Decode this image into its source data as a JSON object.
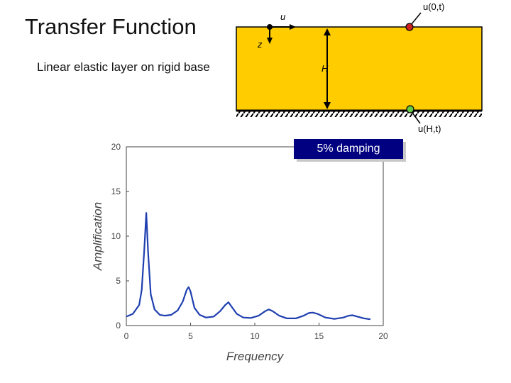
{
  "title": "Transfer Function",
  "subtitle": "Linear elastic layer on rigid base",
  "diagram": {
    "u_label": "u",
    "z_label": "z",
    "H_label": "H",
    "top_point_label": "u(0,t)",
    "base_point_label": "u(H,t)",
    "layer_color": "#FFCC00",
    "top_point_color": "#CC2222",
    "base_point_color": "#66CC44"
  },
  "legend_box": {
    "text": "5% damping",
    "color": "#000080"
  },
  "chart_data": {
    "type": "line",
    "xlabel": "Frequency",
    "ylabel": "Amplification",
    "xlim": [
      0,
      20
    ],
    "ylim": [
      0,
      20
    ],
    "xticks": [
      0,
      5,
      10,
      15,
      20
    ],
    "yticks": [
      0,
      5,
      10,
      15,
      20
    ],
    "line_color": "#1f3fb0",
    "series": [
      {
        "x": [
          0,
          0.5,
          1.0,
          1.2,
          1.4,
          1.55,
          1.7,
          1.9,
          2.2,
          2.6,
          3.0,
          3.5,
          4.0,
          4.4,
          4.7,
          4.85,
          5.0,
          5.3,
          5.7,
          6.2,
          6.8,
          7.3,
          7.7,
          7.95,
          8.2,
          8.6,
          9.1,
          9.7,
          10.3,
          10.8,
          11.1,
          11.4,
          11.9,
          12.5,
          13.2,
          13.8,
          14.2,
          14.5,
          14.9,
          15.5,
          16.2,
          16.9,
          17.3,
          17.6,
          18.0,
          18.5,
          19.0
        ],
        "y": [
          1.0,
          1.3,
          2.3,
          4.0,
          8.5,
          12.6,
          8.0,
          3.5,
          1.8,
          1.2,
          1.1,
          1.2,
          1.7,
          2.7,
          4.0,
          4.3,
          3.8,
          2.0,
          1.2,
          0.9,
          1.0,
          1.6,
          2.3,
          2.6,
          2.1,
          1.3,
          0.9,
          0.85,
          1.1,
          1.6,
          1.8,
          1.6,
          1.1,
          0.8,
          0.8,
          1.1,
          1.4,
          1.45,
          1.3,
          0.9,
          0.75,
          0.9,
          1.1,
          1.15,
          1.0,
          0.8,
          0.7
        ]
      }
    ]
  }
}
